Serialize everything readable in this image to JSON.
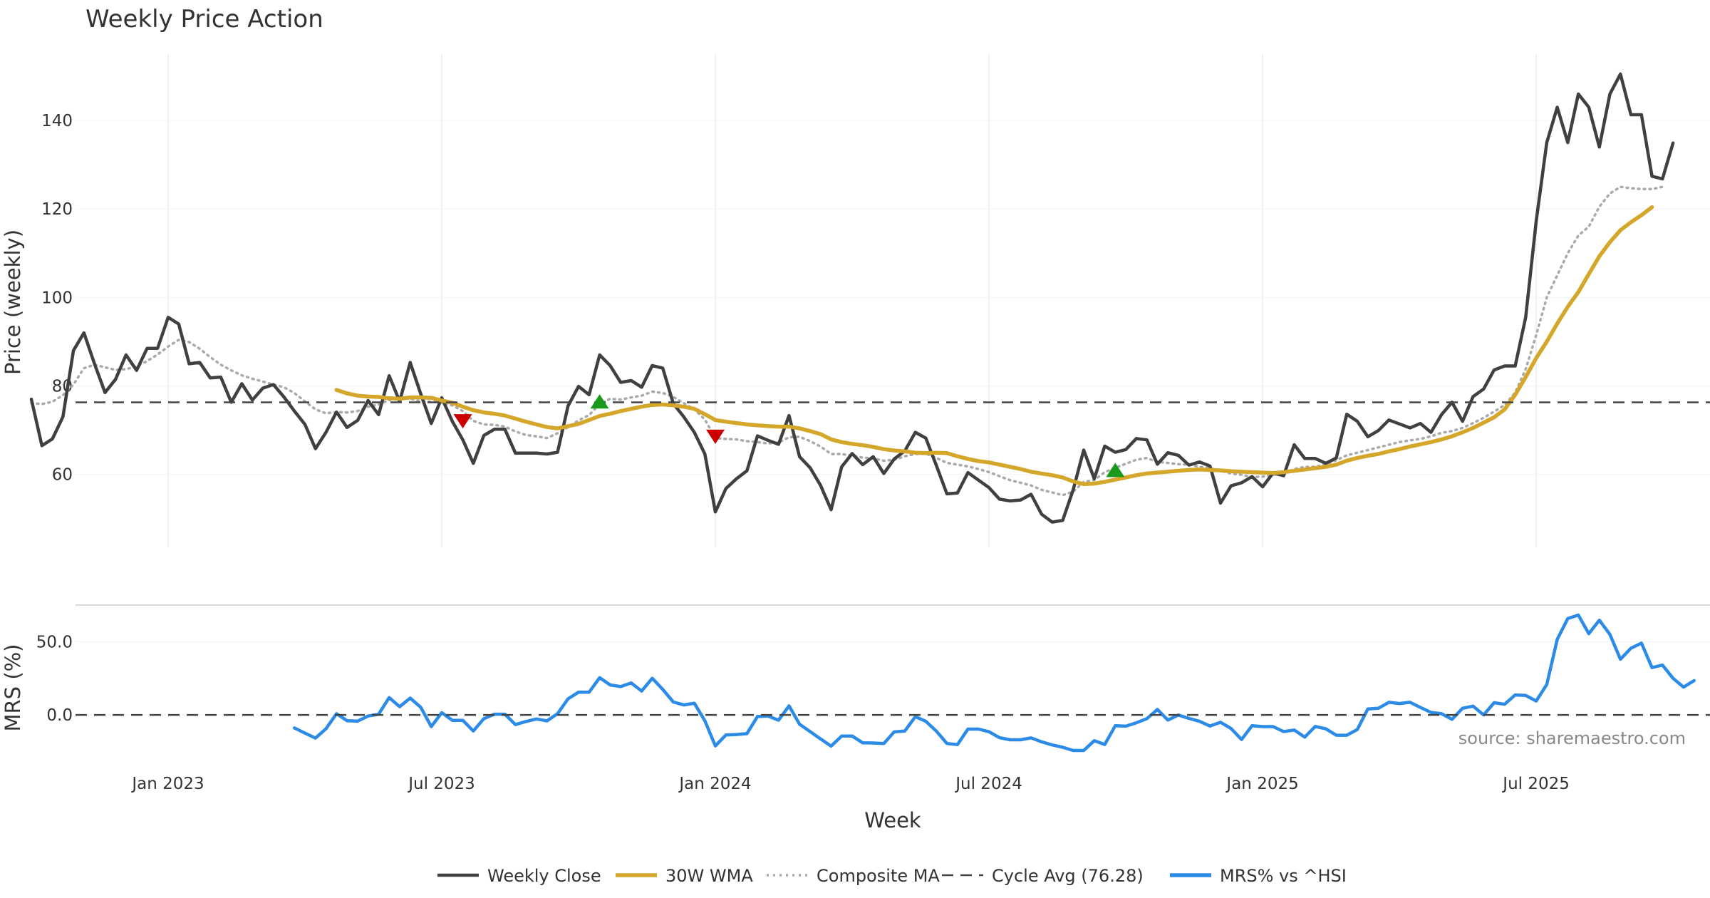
{
  "chart_data": [
    {
      "type": "line",
      "panel": "price",
      "title": "Weekly Price Action",
      "ylabel": "Price (weekly)",
      "ylim": [
        43.5,
        155
      ],
      "yticks": [
        60,
        80,
        100,
        120,
        140
      ],
      "x_ticks": [
        "Jan 2023",
        "Jul 2023",
        "Jan 2024",
        "Jul 2024",
        "Jan 2025",
        "Jul 2025"
      ],
      "x_tick_weeks": [
        13,
        39,
        65,
        91,
        117,
        143
      ],
      "week_count": 160,
      "series": [
        {
          "name": "Weekly Close",
          "color": "#404040",
          "start_week": 0,
          "values": [
            77.0,
            66.5,
            68.0,
            73.0,
            88.0,
            92.0,
            85.0,
            78.5,
            81.5,
            87.0,
            83.5,
            88.5,
            88.5,
            95.5,
            94.0,
            85.0,
            85.3,
            81.8,
            82.0,
            76.3,
            80.5,
            76.8,
            79.5,
            80.3,
            77.5,
            74.3,
            71.3,
            65.8,
            69.5,
            74.1,
            70.6,
            72.2,
            76.7,
            73.5,
            82.3,
            76.5,
            85.3,
            78.2,
            71.5,
            77.3,
            72.0,
            67.8,
            62.5,
            68.8,
            70.2,
            70.2,
            64.8,
            64.8,
            64.8,
            64.6,
            65.0,
            75.5,
            79.9,
            78.0,
            87.0,
            84.6,
            80.8,
            81.2,
            79.7,
            84.6,
            84.0,
            76.0,
            73.0,
            69.5,
            64.6,
            51.5,
            56.8,
            59.0,
            60.8,
            68.7,
            67.7,
            66.8,
            73.3,
            64.0,
            61.5,
            57.5,
            52.0,
            61.7,
            64.7,
            62.2,
            64.0,
            60.2,
            63.5,
            65.3,
            69.5,
            68.2,
            62.0,
            55.6,
            55.8,
            60.4,
            58.7,
            57.0,
            54.4,
            54.0,
            54.2,
            55.5,
            51.0,
            49.2,
            49.6,
            56.5,
            65.5,
            59.0,
            66.4,
            65.0,
            65.6,
            68.1,
            67.8,
            62.3,
            64.9,
            64.3,
            62.1,
            62.8,
            61.9,
            53.5,
            57.4,
            58.1,
            59.5,
            57.2,
            60.3,
            59.7,
            66.7,
            63.6,
            63.6,
            62.5,
            63.7,
            73.6,
            72.0,
            68.5,
            69.9,
            72.3,
            71.4,
            70.5,
            71.5,
            69.5,
            73.5,
            76.3,
            72.0,
            77.6,
            79.3,
            83.6,
            84.5,
            84.5,
            95.5,
            117.3,
            135.0,
            143.0,
            135.0,
            146.0,
            143.0,
            134.0,
            146.0,
            150.5,
            141.3,
            141.3,
            127.4,
            126.8,
            134.9
          ]
        },
        {
          "name": "30W WMA",
          "color": "#d4a62a",
          "start_week": 29,
          "values": [
            79.1,
            78.3,
            77.8,
            77.6,
            77.5,
            77.2,
            77.1,
            77.4,
            77.4,
            77.3,
            76.7,
            76.2,
            75.3,
            74.5,
            74.0,
            73.7,
            73.3,
            72.6,
            71.9,
            71.3,
            70.7,
            70.4,
            70.9,
            71.4,
            72.3,
            73.2,
            73.7,
            74.3,
            74.8,
            75.3,
            75.7,
            75.8,
            75.6,
            75.3,
            74.8,
            73.6,
            72.3,
            71.9,
            71.6,
            71.3,
            71.1,
            70.9,
            70.8,
            70.8,
            70.4,
            69.8,
            69.1,
            67.9,
            67.3,
            66.9,
            66.6,
            66.2,
            65.7,
            65.4,
            65.2,
            64.9,
            64.8,
            64.9,
            64.8,
            64.1,
            63.5,
            63.0,
            62.7,
            62.2,
            61.7,
            61.2,
            60.6,
            60.2,
            59.8,
            59.3,
            58.4,
            57.8,
            57.9,
            58.3,
            58.8,
            59.3,
            59.8,
            60.2,
            60.4,
            60.6,
            60.8,
            61.0,
            61.1,
            61.0,
            60.9,
            60.7,
            60.6,
            60.5,
            60.4,
            60.3,
            60.5,
            60.8,
            61.1,
            61.4,
            61.7,
            62.2,
            63.1,
            63.7,
            64.2,
            64.6,
            65.2,
            65.7,
            66.3,
            66.8,
            67.3,
            67.9,
            68.6,
            69.5,
            70.5,
            71.7,
            72.9,
            74.7,
            78.0,
            82.0,
            86.3,
            90.0,
            94.1,
            97.9,
            101.2,
            105.3,
            109.3,
            112.5,
            115.2,
            117.0,
            118.6,
            120.4
          ]
        },
        {
          "name": "Composite MA",
          "color": "#aaaaaa",
          "start_week": 0,
          "values": [
            76.1,
            75.9,
            76.4,
            77.9,
            80.3,
            84.0,
            84.8,
            84.2,
            83.6,
            83.8,
            84.4,
            85.6,
            87.1,
            88.9,
            90.4,
            89.9,
            88.4,
            86.5,
            84.8,
            83.5,
            82.4,
            81.6,
            81.0,
            80.3,
            79.7,
            78.4,
            76.5,
            74.7,
            73.8,
            74.1,
            74.0,
            74.3,
            75.3,
            75.8,
            76.8,
            77.3,
            77.1,
            76.5,
            76.4,
            76.3,
            75.6,
            74.3,
            72.1,
            71.3,
            71.2,
            70.8,
            69.7,
            68.9,
            68.6,
            68.2,
            69.3,
            70.7,
            72.2,
            73.4,
            75.9,
            77.1,
            76.9,
            77.4,
            77.8,
            78.7,
            78.4,
            77.5,
            76.1,
            74.7,
            72.4,
            68.2,
            68.0,
            67.9,
            67.5,
            67.3,
            67.0,
            67.2,
            68.4,
            68.5,
            67.5,
            66.3,
            64.6,
            64.6,
            64.2,
            63.8,
            63.6,
            63.1,
            63.3,
            64.1,
            64.6,
            64.7,
            63.7,
            62.6,
            62.2,
            61.8,
            61.2,
            60.5,
            59.6,
            58.7,
            58.1,
            57.5,
            56.5,
            55.9,
            55.3,
            56.1,
            58.3,
            58.7,
            60.5,
            61.5,
            62.4,
            63.3,
            63.7,
            62.8,
            62.6,
            62.3,
            62.2,
            61.7,
            61.4,
            60.8,
            60.2,
            59.9,
            59.4,
            59.5,
            59.9,
            60.2,
            61.2,
            61.7,
            61.7,
            62.3,
            63.2,
            64.3,
            64.9,
            65.5,
            66.1,
            66.7,
            67.3,
            67.7,
            68.0,
            68.6,
            69.4,
            69.8,
            70.5,
            71.6,
            72.8,
            74.2,
            75.7,
            78.5,
            83.8,
            91.5,
            100.0,
            105.0,
            110.0,
            114.0,
            116.0,
            120.5,
            123.5,
            125.0,
            124.7,
            124.5,
            124.5,
            125.0
          ]
        },
        {
          "name": "Cycle Avg (76.28)",
          "color": "#444444",
          "constant": 76.28
        }
      ],
      "annotations": [
        {
          "type": "sell",
          "week": 41,
          "value": 72.0,
          "color": "#cc0000"
        },
        {
          "type": "buy",
          "week": 54,
          "value": 76.5,
          "color": "#1a9a1a"
        },
        {
          "type": "sell",
          "week": 65,
          "value": 68.5,
          "color": "#cc0000"
        },
        {
          "type": "buy",
          "week": 103,
          "value": 61.0,
          "color": "#1a9a1a"
        }
      ]
    },
    {
      "type": "line",
      "panel": "mrs",
      "xlabel": "Week",
      "ylabel": "MRS (%)",
      "ylim": [
        -35,
        75
      ],
      "yticks": [
        0,
        50
      ],
      "ytick_labels": [
        "0.0",
        "50.0"
      ],
      "series": [
        {
          "name": "MRS% vs ^HSI",
          "color": "#2b8be6",
          "start_week": 25,
          "values": [
            -8.9,
            -12.4,
            -15.8,
            -9.5,
            0.8,
            -4.0,
            -4.3,
            -0.8,
            0.5,
            11.8,
            5.6,
            11.5,
            5.2,
            -8.0,
            1.5,
            -3.7,
            -3.7,
            -11.0,
            -2.6,
            0.5,
            0.5,
            -6.6,
            -4.5,
            -2.8,
            -4.1,
            0.8,
            11.0,
            15.5,
            15.5,
            25.4,
            20.5,
            19.3,
            21.8,
            16.3,
            25.0,
            17.4,
            8.8,
            6.8,
            8.0,
            -4.0,
            -21.2,
            -13.7,
            -13.4,
            -12.8,
            -1.1,
            -0.8,
            -3.6,
            6.2,
            -6.4,
            -11.4,
            -16.4,
            -21.3,
            -14.4,
            -14.4,
            -19.1,
            -19.2,
            -19.5,
            -11.6,
            -11.0,
            -1.2,
            -4.4,
            -11.1,
            -19.5,
            -20.3,
            -9.7,
            -9.7,
            -11.5,
            -15.6,
            -17.0,
            -17.0,
            -15.7,
            -18.4,
            -20.5,
            -22.1,
            -24.3,
            -24.3,
            -17.6,
            -20.2,
            -7.4,
            -7.7,
            -5.4,
            -2.6,
            3.7,
            -3.5,
            -0.1,
            -2.4,
            -4.4,
            -7.6,
            -5.0,
            -9.3,
            -16.8,
            -7.4,
            -8.0,
            -8.0,
            -11.4,
            -10.3,
            -15.2,
            -7.9,
            -9.5,
            -13.9,
            -13.9,
            -10.0,
            4.1,
            4.5,
            8.6,
            7.8,
            8.6,
            5.1,
            1.7,
            0.8,
            -3.0,
            4.5,
            6.0,
            0.0,
            8.3,
            7.3,
            13.6,
            13.3,
            9.5,
            20.8,
            51.6,
            65.8,
            68.2,
            55.5,
            64.7,
            55.0,
            38.0,
            45.5,
            49.0,
            32.3,
            34.0,
            25.0,
            19.0,
            23.4
          ]
        },
        {
          "name": "zero line",
          "color": "#444444",
          "constant": 0
        }
      ],
      "source_note": "source: sharemaestro.com"
    }
  ],
  "legend": [
    {
      "label": "Weekly Close",
      "style": "solid",
      "color": "#404040"
    },
    {
      "label": "30W WMA",
      "style": "solid-thick",
      "color": "#d4a62a"
    },
    {
      "label": "Composite MA",
      "style": "dotted",
      "color": "#aaaaaa"
    },
    {
      "label": "Cycle Avg (76.28)",
      "style": "dashed",
      "color": "#444444"
    },
    {
      "label": "MRS% vs ^HSI",
      "style": "solid-thick",
      "color": "#2b8be6"
    }
  ]
}
